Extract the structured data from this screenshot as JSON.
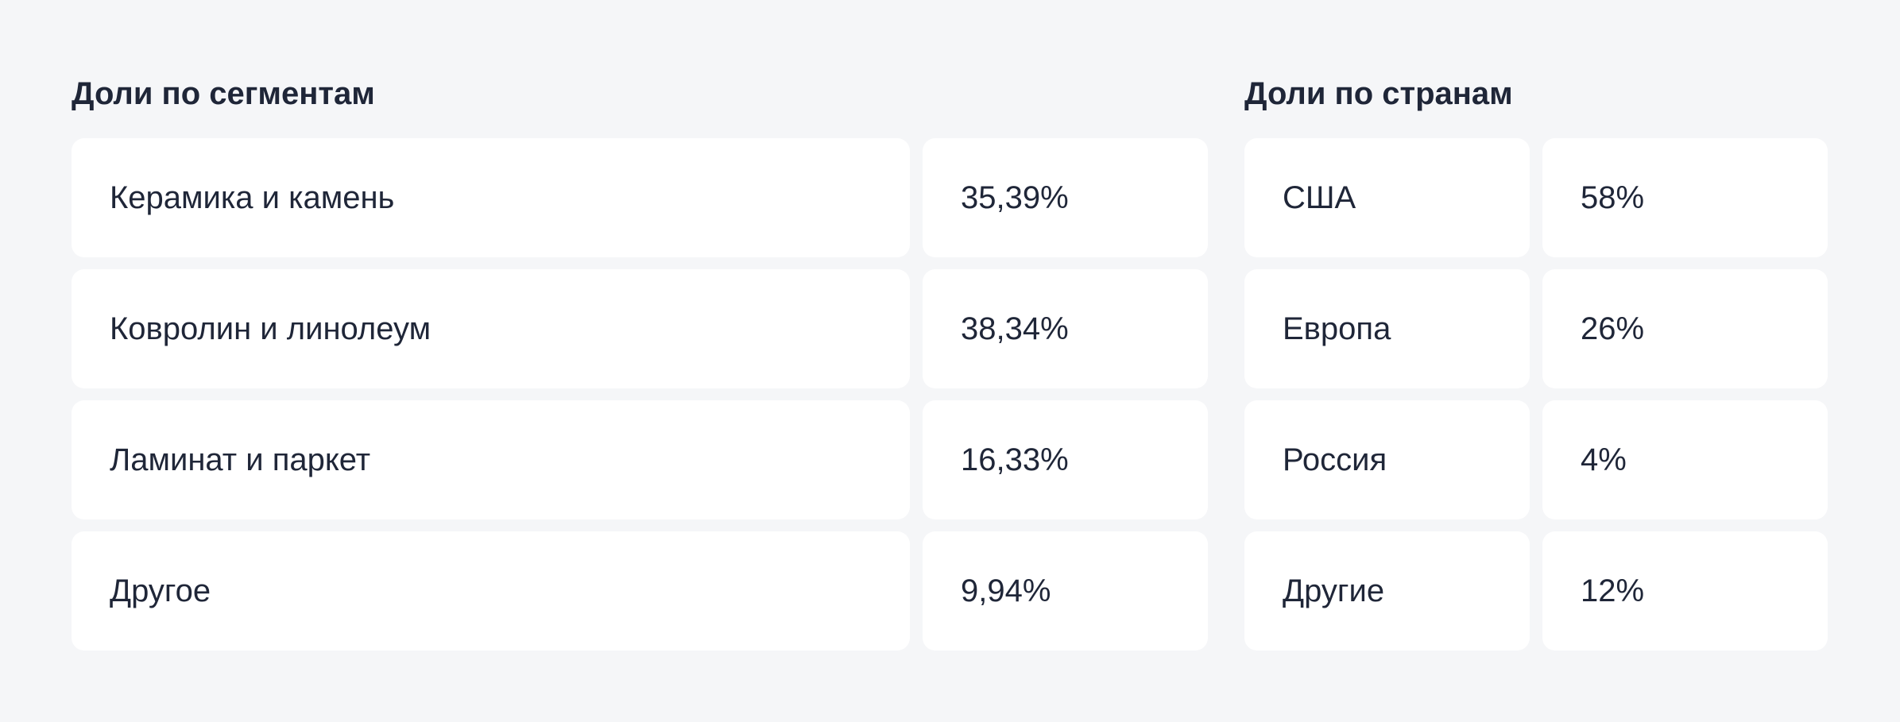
{
  "segments": {
    "title": "Доли по сегментам",
    "rows": [
      {
        "label": "Керамика и камень",
        "value": "35,39%"
      },
      {
        "label": "Ковролин и линолеум",
        "value": "38,34%"
      },
      {
        "label": "Ламинат и паркет",
        "value": "16,33%"
      },
      {
        "label": "Другое",
        "value": "9,94%"
      }
    ]
  },
  "countries": {
    "title": "Доли по странам",
    "rows": [
      {
        "label": "США",
        "value": "58%"
      },
      {
        "label": "Европа",
        "value": "26%"
      },
      {
        "label": "Россия",
        "value": "4%"
      },
      {
        "label": "Другие",
        "value": "12%"
      }
    ]
  },
  "colors": {
    "background": "#f5f6f8",
    "card": "#ffffff",
    "text": "#1f2638"
  }
}
